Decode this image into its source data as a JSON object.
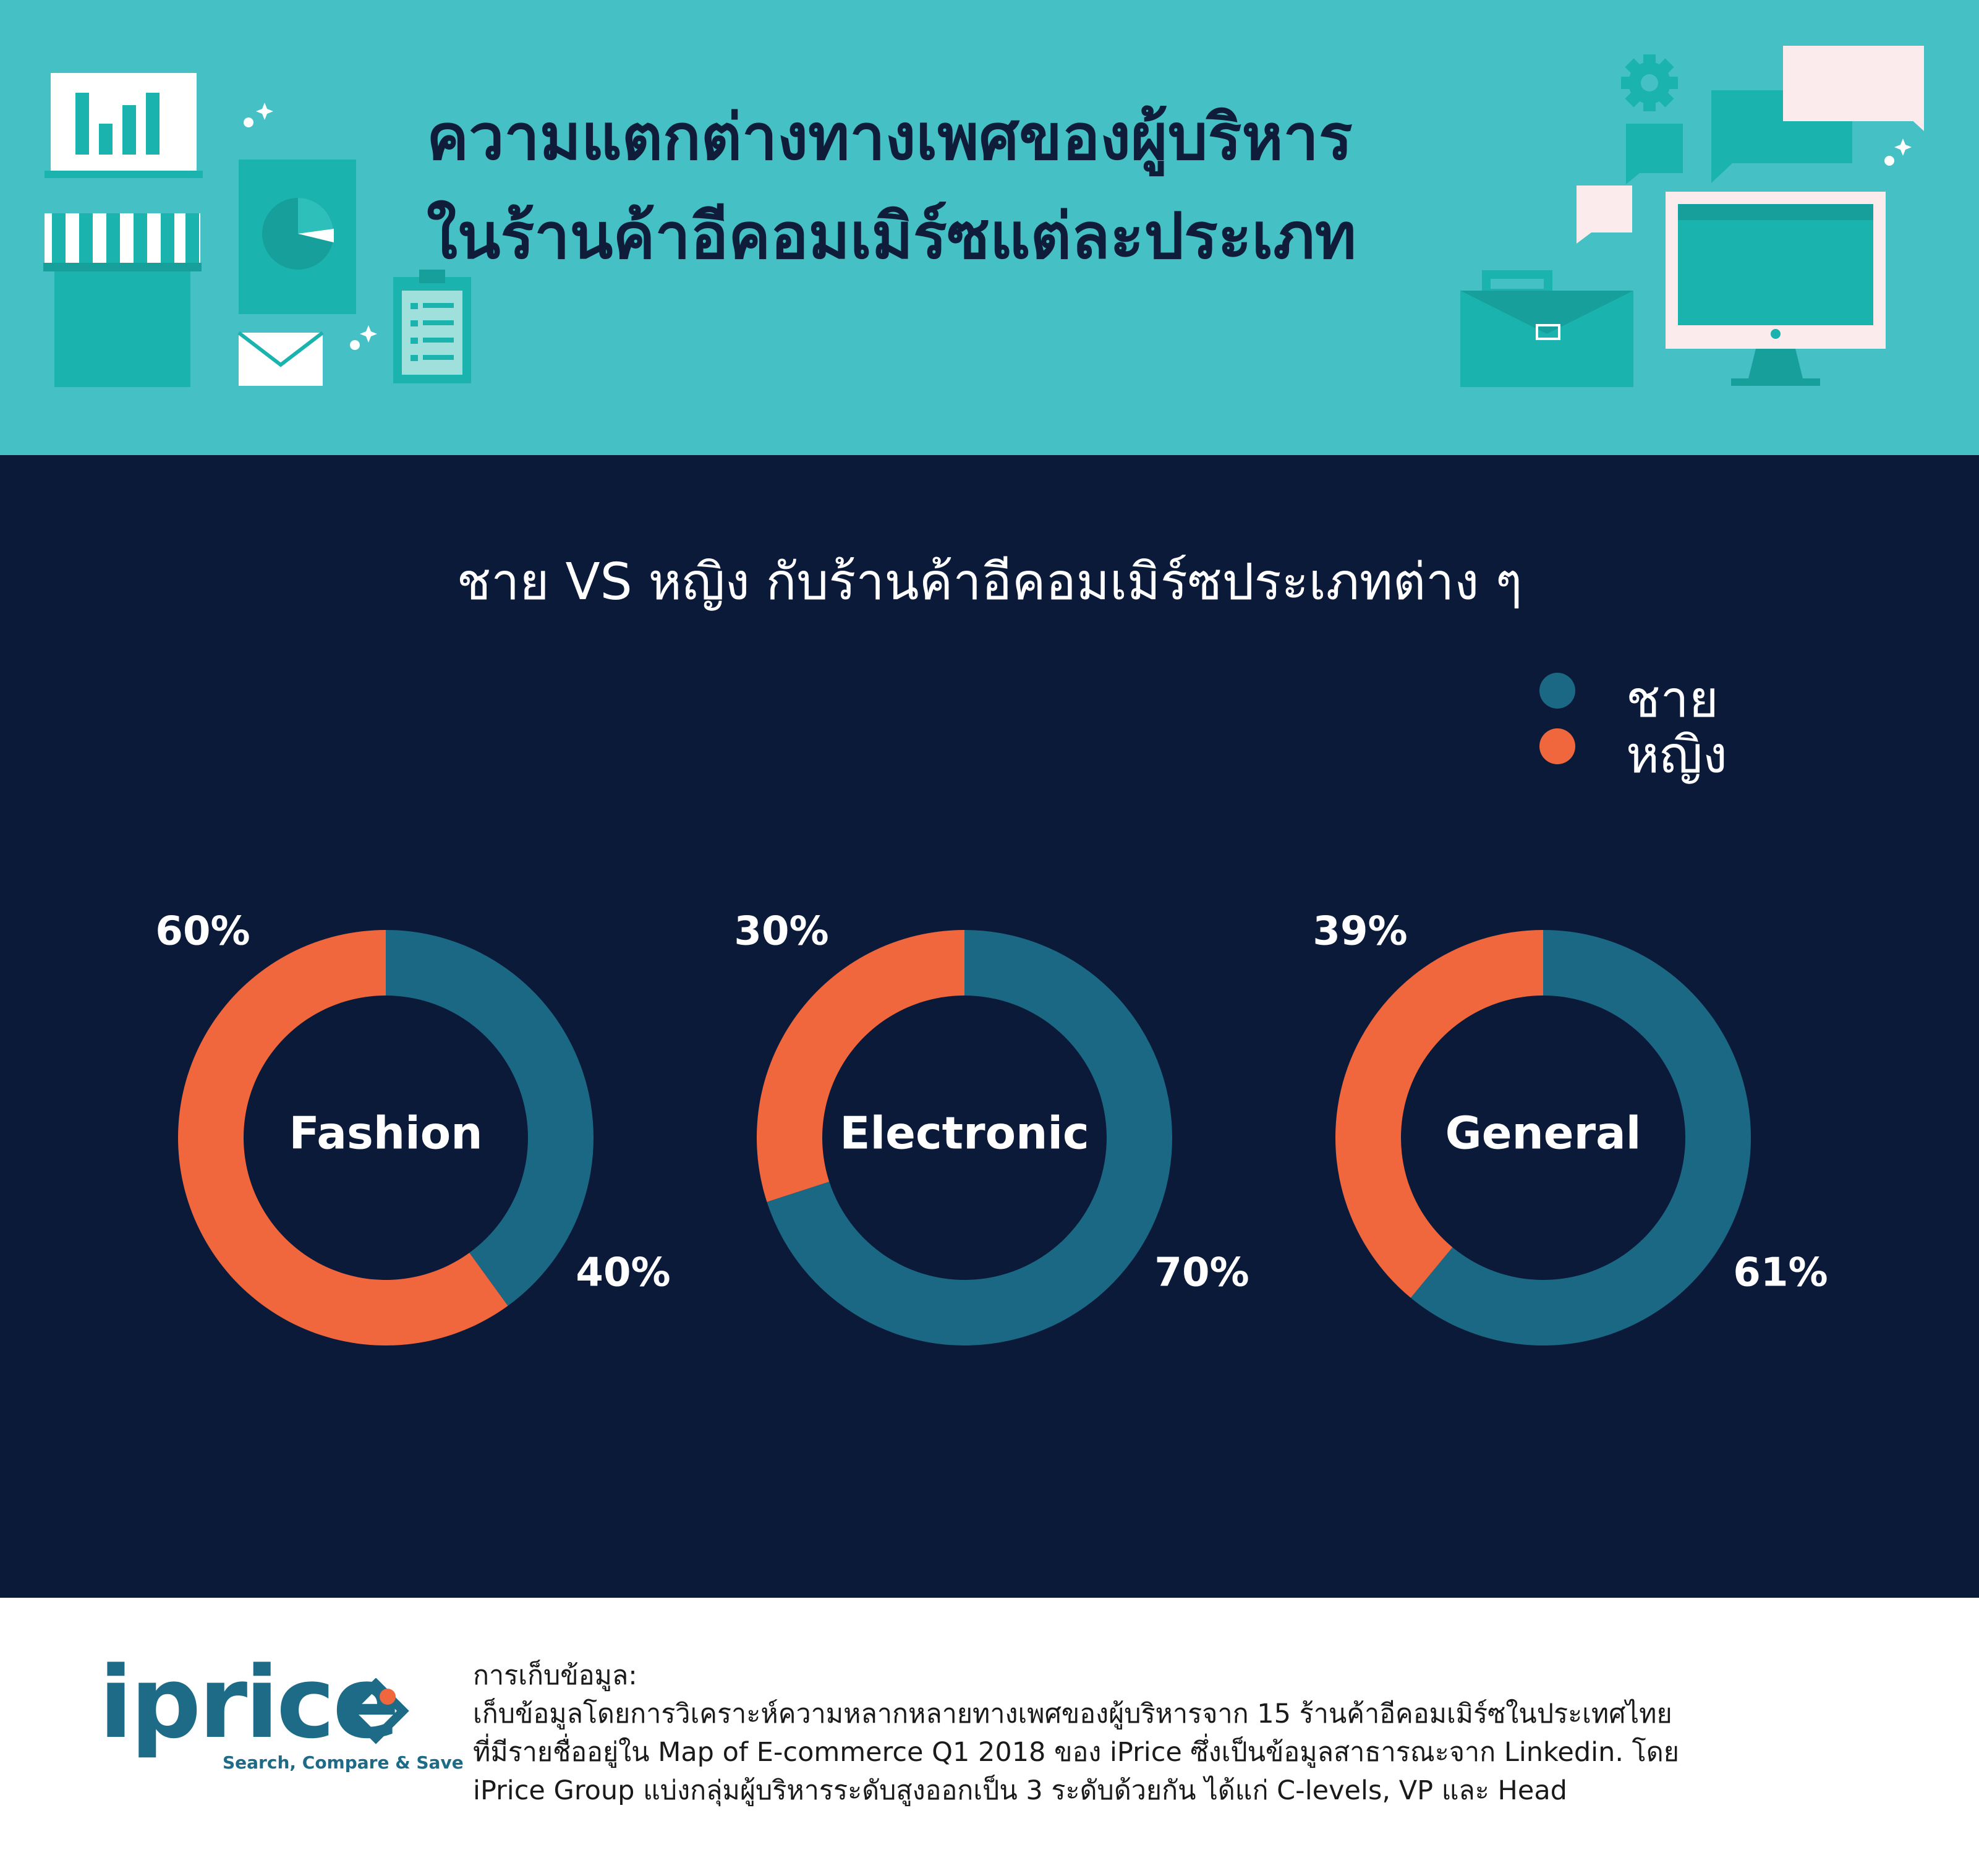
{
  "header": {
    "title_line1": "ความแตกต่างทางเพศของผู้บริหาร",
    "title_line2": "ในร้านค้าอีคอมเมิร์ซแต่ละประเภท"
  },
  "colors": {
    "header_bg": "#45c1c5",
    "main_bg": "#0c1a3a",
    "male": "#1b6884",
    "female": "#f0673d"
  },
  "chart_title": "ชาย VS หญิง กับร้านค้าอีคอมเมิร์ซประเภทต่าง ๆ",
  "legend": [
    {
      "label": "ชาย",
      "color": "#1b6884"
    },
    {
      "label": "หญิง",
      "color": "#f0673d"
    }
  ],
  "chart_data": [
    {
      "type": "pie",
      "donut": true,
      "center_label": "Fashion",
      "slices": [
        {
          "name": "ชาย",
          "value": 40,
          "label": "40%"
        },
        {
          "name": "หญิง",
          "value": 60,
          "label": "60%"
        }
      ]
    },
    {
      "type": "pie",
      "donut": true,
      "center_label": "Electronic",
      "slices": [
        {
          "name": "ชาย",
          "value": 70,
          "label": "70%"
        },
        {
          "name": "หญิง",
          "value": 30,
          "label": "30%"
        }
      ]
    },
    {
      "type": "pie",
      "donut": true,
      "center_label": "General",
      "slices": [
        {
          "name": "ชาย",
          "value": 61,
          "label": "61%"
        },
        {
          "name": "หญิง",
          "value": 39,
          "label": "39%"
        }
      ]
    }
  ],
  "footer": {
    "logo_text": "iprice",
    "logo_tagline": "Search, Compare & Save",
    "note_lines": [
      "การเก็บข้อมูล:",
      "เก็บข้อมูลโดยการวิเคราะห์ความหลากหลายทางเพศของผู้บริหารจาก 15 ร้านค้าอีคอมเมิร์ซในประเทศไทย",
      "ที่มีรายชื่ออยู่ใน Map of E-commerce Q1 2018 ของ iPrice ซึ่งเป็นข้อมูลสาธารณะจาก Linkedin. โดย",
      "iPrice Group แบ่งกลุ่มผู้บริหารระดับสูงออกเป็น 3 ระดับด้วยกัน ได้แก่ C-levels, VP และ Head"
    ]
  }
}
